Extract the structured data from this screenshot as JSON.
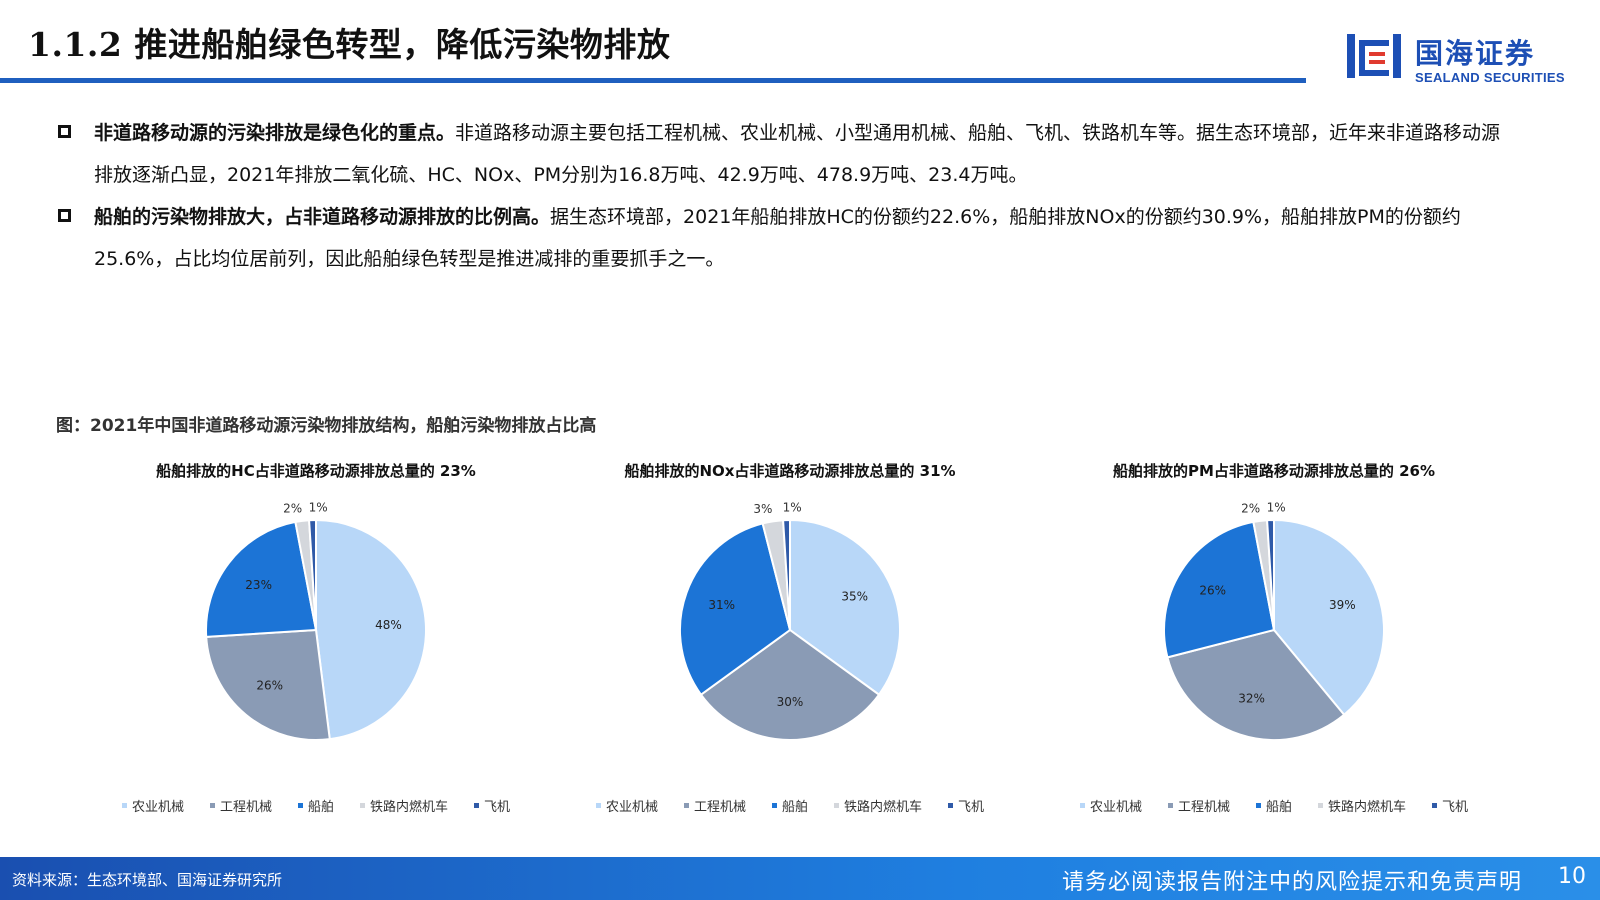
{
  "header": {
    "title": "1.1.2 推进船舶绿色转型，降低污染物排放",
    "logo_cn": "国海证券",
    "logo_en": "SEALAND SECURITIES"
  },
  "bullets": [
    {
      "bold": "非道路移动源的污染排放是绿色化的重点。",
      "text": "非道路移动源主要包括工程机械、农业机械、小型通用机械、船舶、飞机、铁路机车等。据生态环境部，近年来非道路移动源排放逐渐凸显，2021年排放二氧化硫、HC、NOx、PM分别为16.8万吨、42.9万吨、478.9万吨、23.4万吨。"
    },
    {
      "bold": "船舶的污染物排放大，占非道路移动源排放的比例高。",
      "text": "据生态环境部，2021年船舶排放HC的份额约22.6%，船舶排放NOx的份额约30.9%，船舶排放PM的份额约25.6%，占比均位居前列，因此船舶绿色转型是推进减排的重要抓手之一。"
    }
  ],
  "figure_caption": "图：2021年中国非道路移动源污染物排放结构，船舶污染物排放占比高",
  "colors": {
    "农业机械": "#b8d7f8",
    "工程机械": "#8a9bb5",
    "船舶": "#1c74d6",
    "铁路内燃机车": "#d4d7dc",
    "飞机": "#2f5aa8"
  },
  "chart_data": [
    {
      "type": "pie",
      "title": "船舶排放的HC占非道路移动源排放总量的 23%",
      "categories": [
        "农业机械",
        "工程机械",
        "船舶",
        "铁路内燃机车",
        "飞机"
      ],
      "values": [
        48,
        26,
        23,
        2,
        1
      ],
      "labels": [
        "48%",
        "26%",
        "23%",
        "2%",
        "1%"
      ],
      "legend_position": "bottom"
    },
    {
      "type": "pie",
      "title": "船舶排放的NOx占非道路移动源排放总量的 31%",
      "categories": [
        "农业机械",
        "工程机械",
        "船舶",
        "铁路内燃机车",
        "飞机"
      ],
      "values": [
        35,
        30,
        31,
        3,
        1
      ],
      "labels": [
        "35%",
        "30%",
        "31%",
        "3%",
        "1%"
      ],
      "legend_position": "bottom"
    },
    {
      "type": "pie",
      "title": "船舶排放的PM占非道路移动源排放总量的 26%",
      "categories": [
        "农业机械",
        "工程机械",
        "船舶",
        "铁路内燃机车",
        "飞机"
      ],
      "values": [
        39,
        32,
        26,
        2,
        1
      ],
      "labels": [
        "39%",
        "32%",
        "26%",
        "2%",
        "1%"
      ],
      "legend_position": "bottom"
    }
  ],
  "footer": {
    "source": "资料来源：生态环境部、国海证券研究所",
    "disclaimer": "请务必阅读报告附注中的风险提示和免责声明",
    "page_number": "10"
  }
}
